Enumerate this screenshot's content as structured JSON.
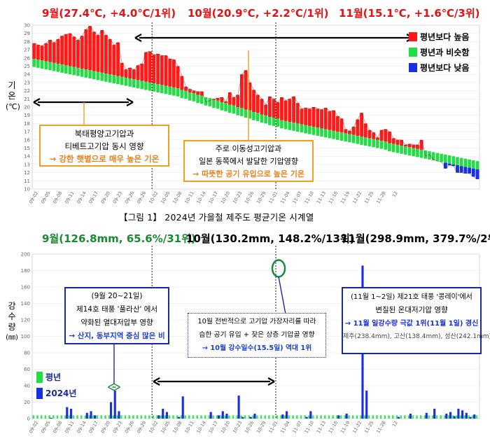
{
  "caption": "【그림 1】 2024년 가을철 제주도 평균기온 시계열",
  "colors": {
    "red": "#ff1a1a",
    "green": "#22dd44",
    "blue": "#1a2fe0",
    "orange": "#f0a020",
    "navy": "#1a2a9a",
    "teal": "#1a8a40"
  },
  "temp_chart": {
    "month_headers": [
      "9월(27.4℃, +4.0℃/1위)",
      "10월(20.9℃, +2.2℃/1위)",
      "11월(15.1℃, +1.6℃/3위)"
    ],
    "ylabel": [
      "기",
      "온",
      "(℃)"
    ],
    "legend": [
      "평년보다 높음",
      "평년과 비슷함",
      "평년보다 낮음"
    ],
    "box_a": [
      "북태평양고기압과",
      "티베트고기압 동시 영향",
      "→ 강한 햇볕으로 매우 높은 기온"
    ],
    "box_b": [
      "주로 이동성고기압과",
      "일본 동쪽에서 발달한 기압영향",
      "→ 따뜻한 공기 유입으로 높은 기온"
    ]
  },
  "rain_chart": {
    "month_headers": [
      "9월(126.8mm, 65.6%/31위)",
      "10월(130.2mm, 148.2%/13위)",
      "11월(298.9mm, 379.7%/2위)"
    ],
    "ylabel": [
      "강",
      "수",
      "량",
      "(㎜)"
    ],
    "legend": [
      "평년",
      "2024년"
    ],
    "box_a": [
      "(9월 20~21일)",
      "제14호 태풍 '풀라산' 에서",
      "약화된 열대저압부 영향",
      "→ 산지, 동부지역 중심 많은 비"
    ],
    "box_b": [
      "10월 전반적으로 고기압 가장자리를 따라",
      "습한 공기 유입 + 잦은 상층 기압골 영향",
      "→ 10월 강수일수(15.5일) 역대 1위"
    ],
    "box_c": [
      "(11월 1~2일) 제21호 태풍 '콩레이'에서",
      "변질된 온대저기압 영향",
      "→ 11월 일강수량 극값 1위(11월 1일) 경신",
      "제주(238.4mm), 고산(138.4mm), 성산(242.1mm)"
    ]
  },
  "chart_data": [
    {
      "type": "bar",
      "title": "",
      "xlabel": "",
      "ylabel": "기온(℃)",
      "ylim": [
        10,
        30
      ],
      "yticks": [
        10,
        11,
        12,
        13,
        14,
        15,
        16,
        17,
        18,
        19,
        20,
        21,
        22,
        23,
        24,
        25,
        26,
        27,
        28,
        29,
        30
      ],
      "x_tick_labels": [
        "09-02",
        "09-05",
        "09-08",
        "09-11",
        "09-14",
        "09-17",
        "09-20",
        "09-23",
        "09-26",
        "09-29",
        "10-02",
        "10-05",
        "10-08",
        "10-11",
        "10-14",
        "10-17",
        "10-20",
        "10-23",
        "10-26",
        "10-29",
        "11-01",
        "11-04",
        "11-07",
        "11-10",
        "11-13",
        "11-16",
        "11-19",
        "11-22",
        "11-25",
        "11-28",
        "12"
      ],
      "dates_start": "09-01",
      "series": [
        {
          "name": "2024년",
          "values": [
            27.8,
            27.6,
            27.5,
            27.8,
            28.2,
            27.9,
            28.3,
            28.7,
            28.9,
            29.0,
            28.6,
            28.2,
            28.7,
            29.5,
            29.9,
            29.2,
            28.8,
            29.4,
            28.8,
            28.3,
            27.6,
            27.9,
            25.4,
            24.6,
            24.8,
            24.6,
            25.1,
            25.3,
            26.7,
            26.8,
            26.4,
            26.5,
            26.3,
            26.3,
            25.9,
            25.8,
            25.0,
            23.8,
            22.5,
            22.2,
            22.0,
            21.9,
            21.9,
            20.6,
            20.8,
            21.0,
            21.1,
            21.2,
            20.7,
            21.8,
            21.2,
            21.5,
            24.0,
            24.5,
            23.0,
            22.1,
            21.5,
            21.0,
            20.3,
            21.3,
            21.0,
            20.6,
            21.2,
            20.8,
            21.0,
            21.3,
            20.5,
            19.8,
            19.9,
            19.8,
            20.0,
            19.8,
            19.7,
            19.9,
            19.5,
            19.6,
            18.9,
            18.6,
            17.3,
            17.1,
            17.6,
            18.5,
            19.3,
            18.0,
            17.2,
            16.9,
            16.3,
            17.2,
            17.3,
            17.0,
            16.2,
            16.0,
            16.0,
            15.4,
            15.5,
            15.4,
            15.4,
            16.0,
            14.0,
            14.2,
            13.6,
            13.4,
            13.3,
            12.5,
            12.9,
            12.8,
            12.0,
            12.0,
            11.9,
            11.9,
            11.5,
            11.2
          ]
        },
        {
          "name": "평년",
          "values": [
            25.4,
            25.3,
            25.2,
            25.1,
            25.0,
            24.9,
            24.8,
            24.7,
            24.6,
            24.5,
            24.4,
            24.3,
            24.2,
            24.1,
            24.0,
            23.9,
            23.8,
            23.7,
            23.6,
            23.5,
            23.4,
            23.3,
            23.2,
            23.1,
            23.0,
            22.9,
            22.8,
            22.7,
            22.6,
            22.5,
            22.4,
            22.3,
            22.2,
            22.1,
            22.0,
            21.9,
            21.8,
            21.6,
            21.5,
            21.3,
            21.2,
            21.0,
            20.9,
            20.7,
            20.6,
            20.4,
            20.3,
            20.1,
            20.0,
            19.8,
            19.7,
            19.5,
            19.4,
            19.2,
            19.1,
            18.9,
            18.8,
            18.6,
            18.5,
            18.3,
            18.2,
            18.1,
            17.9,
            17.8,
            17.7,
            17.6,
            17.5,
            17.4,
            17.3,
            17.2,
            17.1,
            17.0,
            16.9,
            16.8,
            16.7,
            16.6,
            16.5,
            16.4,
            16.3,
            16.2,
            16.1,
            16.0,
            15.9,
            15.8,
            15.7,
            15.6,
            15.5,
            15.4,
            15.3,
            15.1,
            15.0,
            14.9,
            14.8,
            14.7,
            14.6,
            14.5,
            14.4,
            14.3,
            14.2,
            14.1,
            14.0,
            13.9,
            13.8,
            13.7,
            13.6,
            13.5,
            13.4,
            13.3,
            13.2,
            13.1,
            13.0,
            12.9
          ]
        }
      ]
    },
    {
      "type": "bar",
      "title": "",
      "xlabel": "",
      "ylabel": "강수량(㎜)",
      "ylim": [
        0,
        200
      ],
      "yticks": [
        0,
        20,
        40,
        60,
        80,
        100,
        120,
        140,
        160,
        180,
        200
      ],
      "x_tick_labels": [
        "09-02",
        "09-05",
        "09-08",
        "09-11",
        "09-14",
        "09-17",
        "09-20",
        "09-23",
        "09-26",
        "09-29",
        "10-02",
        "10-05",
        "10-08",
        "10-11",
        "10-14",
        "10-17",
        "10-20",
        "10-23",
        "10-26",
        "10-29",
        "11-01",
        "11-04",
        "11-07",
        "11-10",
        "11-13",
        "11-16",
        "11-19",
        "11-22",
        "11-25",
        "11-28",
        "12"
      ],
      "dates_start": "09-01",
      "series": [
        {
          "name": "평년",
          "values_note": "daily normal ~3-5 mm"
        },
        {
          "name": "2024년",
          "values": [
            0,
            0,
            0,
            0,
            1,
            0,
            0,
            0,
            14,
            12,
            0,
            0,
            0,
            7,
            9,
            4,
            0,
            0,
            0,
            20,
            34,
            9,
            0,
            0,
            0,
            0,
            0,
            0,
            0,
            0,
            0,
            4,
            12,
            8,
            0,
            0,
            2,
            27,
            0,
            0,
            0,
            0,
            0,
            0,
            8,
            0,
            4,
            9,
            6,
            0,
            0,
            28,
            2,
            0,
            2,
            6,
            0,
            0,
            0,
            0,
            0,
            0,
            5,
            9,
            0,
            0,
            0,
            0,
            2,
            9,
            0,
            0,
            0,
            0,
            0,
            0,
            4,
            0,
            6,
            0,
            0,
            0,
            186,
            34,
            0,
            0,
            0,
            0,
            0,
            0,
            0,
            2,
            0,
            0,
            6,
            0,
            0,
            0,
            7,
            0,
            12,
            0,
            0,
            6,
            8,
            3,
            12,
            10,
            7,
            2,
            5,
            0
          ]
        }
      ]
    }
  ]
}
